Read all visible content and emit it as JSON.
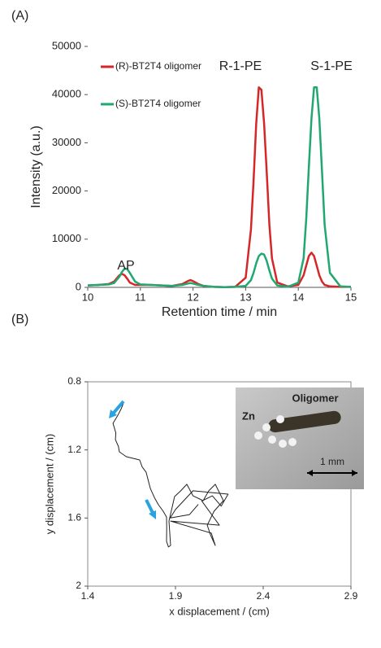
{
  "chart_data": [
    {
      "type": "line",
      "panel_label": "(A)",
      "x_label": "Retention time / min",
      "y_label": "Intensity (a.u.)",
      "x": [
        10.0,
        10.2,
        10.4,
        10.5,
        10.6,
        10.65,
        10.7,
        10.75,
        10.8,
        10.9,
        11.0,
        11.2,
        11.4,
        11.6,
        11.8,
        11.9,
        11.95,
        12.0,
        12.1,
        12.2,
        12.4,
        12.6,
        12.8,
        13.0,
        13.1,
        13.15,
        13.2,
        13.25,
        13.3,
        13.35,
        13.4,
        13.45,
        13.5,
        13.6,
        13.8,
        14.0,
        14.1,
        14.15,
        14.2,
        14.25,
        14.3,
        14.35,
        14.4,
        14.45,
        14.5,
        14.6,
        14.8,
        15.0
      ],
      "series": [
        {
          "name": "(R)-BT2T4 oligomer",
          "color": "#d62728",
          "values": [
            400,
            500,
            700,
            1200,
            2500,
            2800,
            2500,
            1800,
            1000,
            500,
            500,
            500,
            400,
            300,
            700,
            1300,
            1500,
            1300,
            700,
            300,
            100,
            50,
            100,
            2000,
            12000,
            22000,
            34000,
            41500,
            41000,
            34000,
            24000,
            13000,
            6000,
            1000,
            200,
            500,
            2500,
            4500,
            6500,
            7200,
            6500,
            4500,
            2500,
            1200,
            500,
            200,
            100,
            100
          ]
        },
        {
          "name": "(S)-BT2T4 oligomer",
          "color": "#20a870",
          "values": [
            400,
            500,
            600,
            900,
            2200,
            3200,
            3900,
            3800,
            3000,
            1200,
            600,
            500,
            400,
            300,
            500,
            800,
            900,
            800,
            500,
            300,
            100,
            50,
            100,
            300,
            1500,
            3000,
            5000,
            6500,
            7000,
            6800,
            5500,
            3500,
            1800,
            400,
            100,
            1000,
            6000,
            14000,
            25000,
            35000,
            41500,
            41500,
            35000,
            24000,
            13000,
            3000,
            200,
            100
          ]
        }
      ],
      "annotations": [
        "AP",
        "R-1-PE",
        "S-1-PE"
      ],
      "xlim": [
        10,
        15
      ],
      "xticks": [
        10,
        11,
        12,
        13,
        14,
        15
      ],
      "ylim": [
        0,
        50000
      ],
      "yticks": [
        0,
        10000,
        20000,
        30000,
        40000,
        50000
      ],
      "legend": "upper left"
    },
    {
      "type": "line",
      "panel_label": "(B)",
      "x_label": "x displacement / (cm)",
      "y_label": "y displacement / (cm)",
      "x": [
        1.604,
        1.59,
        1.57,
        1.544,
        1.56,
        1.558,
        1.575,
        1.58,
        1.62,
        1.696,
        1.71,
        1.733,
        1.745,
        1.757,
        1.78,
        1.803,
        1.83,
        1.849,
        1.85,
        1.849,
        1.86,
        1.872,
        1.863,
        1.895,
        1.93,
        1.965,
        2.0,
        2.058,
        2.09,
        2.127,
        2.15,
        2.173,
        2.12,
        2.081,
        2.1,
        2.127,
        2.104,
        1.872,
        2.15,
        2.05,
        2.11,
        2.16,
        2.2,
        2.0,
        1.9,
        1.87,
        1.98,
        2.03
      ],
      "series": [
        {
          "name": "trajectory",
          "color": "#222222",
          "values": [
            0.924,
            0.96,
            1.0,
            1.044,
            1.1,
            1.14,
            1.18,
            1.211,
            1.24,
            1.259,
            1.3,
            1.331,
            1.38,
            1.427,
            1.48,
            1.522,
            1.56,
            1.594,
            1.66,
            1.737,
            1.77,
            1.761,
            1.618,
            1.474,
            1.44,
            1.402,
            1.47,
            1.498,
            1.44,
            1.402,
            1.45,
            1.498,
            1.56,
            1.642,
            1.7,
            1.761,
            1.689,
            1.618,
            1.642,
            1.5,
            1.47,
            1.53,
            1.46,
            1.44,
            1.55,
            1.6,
            1.58,
            1.52
          ]
        }
      ],
      "annotations": [
        "Zn",
        "Oligomer",
        "1 mm"
      ],
      "xlim": [
        1.4,
        2.9
      ],
      "xticks": [
        1.4,
        1.9,
        2.4,
        2.9
      ],
      "ylim": [
        0.8,
        2
      ],
      "yticks": [
        0.8,
        1.2,
        1.6,
        2
      ],
      "y_inverted": true
    }
  ]
}
